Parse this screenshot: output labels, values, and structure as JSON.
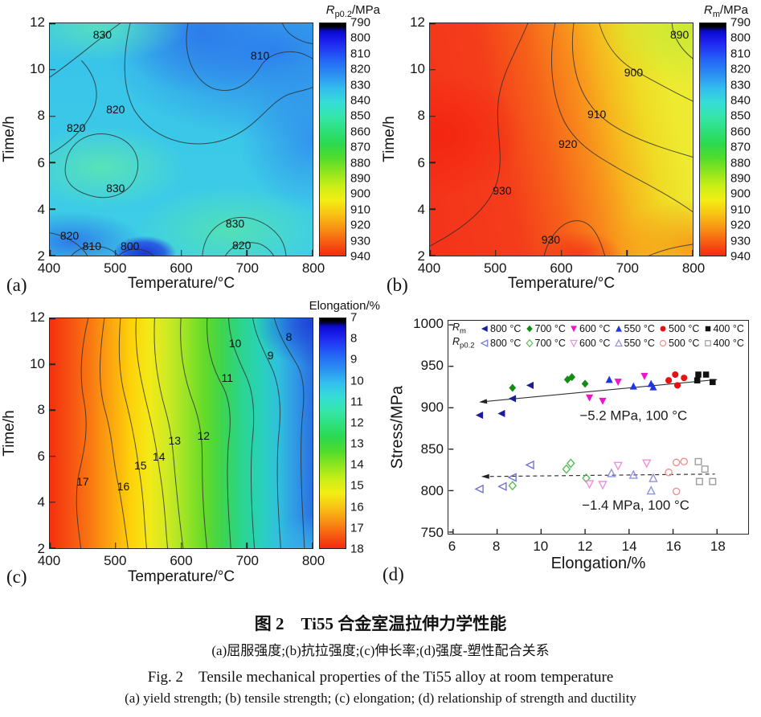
{
  "caption": {
    "zh_title": "图 2　Ti55 合金室温拉伸力学性能",
    "zh_sub": "(a)屈服强度;(b)抗拉强度;(c)伸长率;(d)强度-塑性配合关系",
    "en_title": "Fig. 2　Tensile mechanical properties of the Ti55 alloy at room temperature",
    "en_sub": "(a) yield strength; (b) tensile strength; (c) elongation; (d) relationship of strength and ductility"
  },
  "chart_data": [
    {
      "id": "a",
      "type": "contour-heatmap",
      "panel_letter": "(a)",
      "xlabel": "Temperature/°C",
      "ylabel": "Time/h",
      "xlim": [
        400,
        800
      ],
      "ylim": [
        2,
        12
      ],
      "xticks": [
        400,
        500,
        600,
        700,
        800
      ],
      "yticks": [
        2,
        4,
        6,
        8,
        10,
        12
      ],
      "colorbar": {
        "sym": "R",
        "sub": "p0.2",
        "unit": "/MPa",
        "min": 790,
        "max": 940,
        "ticks": [
          790,
          800,
          810,
          820,
          830,
          840,
          850,
          860,
          870,
          880,
          890,
          900,
          910,
          920,
          930,
          940
        ]
      },
      "contour_labels": [
        {
          "v": "830",
          "x": 20,
          "y": 5
        },
        {
          "v": "810",
          "x": 80,
          "y": 14
        },
        {
          "v": "820",
          "x": 25,
          "y": 37
        },
        {
          "v": "820",
          "x": 10,
          "y": 45
        },
        {
          "v": "830",
          "x": 25,
          "y": 71
        },
        {
          "v": "830",
          "x": 70.5,
          "y": 86
        },
        {
          "v": "820",
          "x": 7.5,
          "y": 91.5
        },
        {
          "v": "810",
          "x": 16,
          "y": 96
        },
        {
          "v": "800",
          "x": 30.5,
          "y": 96
        },
        {
          "v": "820",
          "x": 73,
          "y": 95.5
        }
      ]
    },
    {
      "id": "b",
      "type": "contour-heatmap",
      "panel_letter": "(b)",
      "xlabel": "Temperature/°C",
      "ylabel": "Time/h",
      "xlim": [
        400,
        800
      ],
      "ylim": [
        2,
        12
      ],
      "xticks": [
        400,
        500,
        600,
        700,
        800
      ],
      "yticks": [
        2,
        4,
        6,
        8,
        10,
        12
      ],
      "colorbar": {
        "sym": "R",
        "sub": "m",
        "unit": "/MPa",
        "min": 790,
        "max": 940,
        "ticks": [
          790,
          800,
          810,
          820,
          830,
          840,
          850,
          860,
          870,
          880,
          890,
          900,
          910,
          920,
          930,
          940
        ]
      },
      "contour_labels": [
        {
          "v": "890",
          "x": 95,
          "y": 5
        },
        {
          "v": "900",
          "x": 77.5,
          "y": 21
        },
        {
          "v": "910",
          "x": 63.5,
          "y": 39
        },
        {
          "v": "920",
          "x": 52.5,
          "y": 52
        },
        {
          "v": "930",
          "x": 27.5,
          "y": 72
        },
        {
          "v": "930",
          "x": 46,
          "y": 93
        }
      ]
    },
    {
      "id": "c",
      "type": "contour-heatmap",
      "panel_letter": "(c)",
      "xlabel": "Temperature/°C",
      "ylabel": "Time/h",
      "xlim": [
        400,
        800
      ],
      "ylim": [
        2,
        12
      ],
      "xticks": [
        400,
        500,
        600,
        700,
        800
      ],
      "yticks": [
        2,
        4,
        6,
        8,
        10,
        12
      ],
      "colorbar": {
        "sym": "",
        "sub": "",
        "unit": "Elongation/%",
        "min": 7,
        "max": 18,
        "ticks": [
          7,
          8,
          9,
          10,
          11,
          12,
          13,
          14,
          15,
          16,
          17,
          18
        ]
      },
      "contour_labels": [
        {
          "v": "8",
          "x": 91,
          "y": 8
        },
        {
          "v": "9",
          "x": 84,
          "y": 16
        },
        {
          "v": "10",
          "x": 70.5,
          "y": 11
        },
        {
          "v": "11",
          "x": 67.5,
          "y": 26
        },
        {
          "v": "12",
          "x": 58.5,
          "y": 51
        },
        {
          "v": "13",
          "x": 47.5,
          "y": 53
        },
        {
          "v": "14",
          "x": 41.5,
          "y": 60
        },
        {
          "v": "15",
          "x": 34.5,
          "y": 64
        },
        {
          "v": "16",
          "x": 28,
          "y": 73
        },
        {
          "v": "17",
          "x": 12.5,
          "y": 71
        }
      ]
    },
    {
      "id": "d",
      "type": "scatter",
      "panel_letter": "(d)",
      "xlabel": "Elongation/%",
      "ylabel": "Stress/MPa",
      "xlim": [
        5.8,
        19.4
      ],
      "ylim": [
        748,
        1005
      ],
      "xticks": [
        6,
        8,
        10,
        12,
        14,
        16,
        18
      ],
      "yticks": [
        750,
        800,
        850,
        900,
        950,
        1000
      ],
      "legend": {
        "rows": [
          {
            "sym": "R",
            "sub": "m"
          },
          {
            "sym": "R",
            "sub": "p0.2"
          }
        ],
        "temps": [
          "800 °C",
          "700 °C",
          "600 °C",
          "550 °C",
          "500 °C",
          "400 °C"
        ]
      },
      "series": [
        {
          "group": "Rm",
          "temp": "800 °C",
          "marker": "tri-left",
          "color": "#1c1c99",
          "open": false,
          "points": [
            [
              7.2,
              891
            ],
            [
              8.2,
              893
            ],
            [
              8.7,
              911
            ],
            [
              9.5,
              927
            ]
          ]
        },
        {
          "group": "Rm",
          "temp": "700 °C",
          "marker": "diamond",
          "color": "#128c12",
          "open": false,
          "points": [
            [
              8.7,
              924
            ],
            [
              11.2,
              934
            ],
            [
              11.4,
              937
            ],
            [
              12.0,
              929
            ]
          ]
        },
        {
          "group": "Rm",
          "temp": "600 °C",
          "marker": "tri-down",
          "color": "#ee14cc",
          "open": false,
          "points": [
            [
              12.2,
              912
            ],
            [
              12.8,
              908
            ],
            [
              13.5,
              931
            ],
            [
              14.7,
              938
            ]
          ]
        },
        {
          "group": "Rm",
          "temp": "550 °C",
          "marker": "tri-up",
          "color": "#2336dd",
          "open": false,
          "points": [
            [
              13.1,
              934
            ],
            [
              14.2,
              926
            ],
            [
              15.0,
              929
            ],
            [
              15.1,
              925
            ]
          ]
        },
        {
          "group": "Rm",
          "temp": "500 °C",
          "marker": "circle",
          "color": "#e81111",
          "open": false,
          "points": [
            [
              15.8,
              933
            ],
            [
              16.1,
              940
            ],
            [
              16.2,
              927
            ],
            [
              16.5,
              936
            ]
          ]
        },
        {
          "group": "Rm",
          "temp": "400 °C",
          "marker": "square",
          "color": "#111111",
          "open": false,
          "points": [
            [
              17.15,
              940
            ],
            [
              17.5,
              940
            ],
            [
              17.1,
              933
            ],
            [
              17.8,
              931
            ]
          ]
        },
        {
          "group": "Rp0.2",
          "temp": "800 °C",
          "marker": "tri-left",
          "color": "#7272cf",
          "open": true,
          "points": [
            [
              7.2,
              802
            ],
            [
              8.25,
              805
            ],
            [
              8.7,
              816
            ],
            [
              9.5,
              831
            ]
          ]
        },
        {
          "group": "Rp0.2",
          "temp": "700 °C",
          "marker": "diamond",
          "color": "#58bc58",
          "open": true,
          "points": [
            [
              8.7,
              806
            ],
            [
              11.15,
              826
            ],
            [
              11.35,
              833
            ],
            [
              12.05,
              815
            ]
          ]
        },
        {
          "group": "Rp0.2",
          "temp": "600 °C",
          "marker": "tri-down",
          "color": "#ef8ee2",
          "open": true,
          "points": [
            [
              12.2,
              808
            ],
            [
              12.8,
              807
            ],
            [
              13.5,
              830
            ],
            [
              14.8,
              833
            ]
          ]
        },
        {
          "group": "Rp0.2",
          "temp": "550 °C",
          "marker": "tri-up",
          "color": "#9090e0",
          "open": true,
          "points": [
            [
              13.2,
              821
            ],
            [
              14.2,
              819
            ],
            [
              15.1,
              815
            ],
            [
              15.0,
              800
            ]
          ]
        },
        {
          "group": "Rp0.2",
          "temp": "500 °C",
          "marker": "circle",
          "color": "#f29090",
          "open": true,
          "points": [
            [
              15.8,
              822
            ],
            [
              16.15,
              834
            ],
            [
              16.5,
              835
            ],
            [
              16.15,
              799
            ]
          ]
        },
        {
          "group": "Rp0.2",
          "temp": "400 °C",
          "marker": "square",
          "color": "#9c9c9c",
          "open": true,
          "points": [
            [
              17.15,
              835
            ],
            [
              17.45,
              826
            ],
            [
              17.2,
              811
            ],
            [
              17.8,
              811
            ]
          ]
        }
      ],
      "trend_lines": [
        {
          "style": "solid",
          "points": [
            [
              7.25,
              907
            ],
            [
              18.0,
              934
            ]
          ],
          "arrow": "left"
        },
        {
          "style": "dashed",
          "points": [
            [
              7.35,
              817
            ],
            [
              17.9,
              820
            ]
          ],
          "arrow": "left"
        }
      ],
      "annotations": [
        {
          "text": "−5.2 MPa, 100 °C",
          "x": 14.2,
          "y": 891
        },
        {
          "text": "−1.4 MPa, 100 °C",
          "x": 14.3,
          "y": 783
        }
      ]
    }
  ]
}
